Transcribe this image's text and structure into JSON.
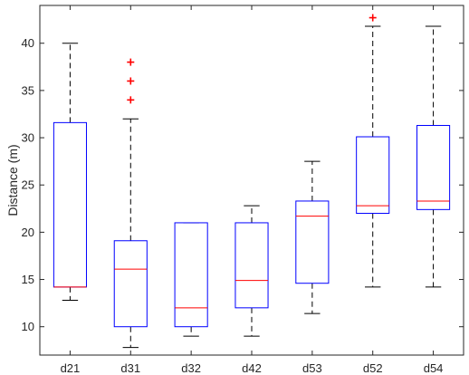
{
  "chart_data": {
    "type": "boxplot",
    "title": "",
    "xlabel": "",
    "ylabel": "Distance (m)",
    "ylim": [
      7,
      44
    ],
    "yticks": [
      10,
      15,
      20,
      25,
      30,
      35,
      40
    ],
    "grid": false,
    "colors": {
      "box": "#0000ff",
      "median": "#ff0000",
      "whisker": "#000000",
      "outlier": "#ff0000",
      "axis": "#262626"
    },
    "categories": [
      "d21",
      "d31",
      "d32",
      "d42",
      "d53",
      "d52",
      "d54"
    ],
    "boxes": [
      {
        "label": "d21",
        "whisker_low": 12.8,
        "q1": 14.2,
        "median": 14.2,
        "q3": 31.6,
        "whisker_high": 40.0,
        "outliers": []
      },
      {
        "label": "d31",
        "whisker_low": 7.8,
        "q1": 10.0,
        "median": 16.1,
        "q3": 19.1,
        "whisker_high": 32.0,
        "outliers": [
          34.0,
          36.0,
          38.0
        ]
      },
      {
        "label": "d32",
        "whisker_low": 9.0,
        "q1": 10.0,
        "median": 12.0,
        "q3": 21.0,
        "whisker_high": 21.0,
        "outliers": []
      },
      {
        "label": "d42",
        "whisker_low": 9.0,
        "q1": 12.0,
        "median": 14.9,
        "q3": 21.0,
        "whisker_high": 22.8,
        "outliers": []
      },
      {
        "label": "d53",
        "whisker_low": 11.4,
        "q1": 14.6,
        "median": 21.7,
        "q3": 23.3,
        "whisker_high": 27.5,
        "outliers": []
      },
      {
        "label": "d52",
        "whisker_low": 14.2,
        "q1": 22.0,
        "median": 22.8,
        "q3": 30.1,
        "whisker_high": 41.8,
        "outliers": [
          42.7
        ]
      },
      {
        "label": "d54",
        "whisker_low": 14.2,
        "q1": 22.4,
        "median": 23.3,
        "q3": 31.3,
        "whisker_high": 41.8,
        "outliers": []
      }
    ]
  }
}
